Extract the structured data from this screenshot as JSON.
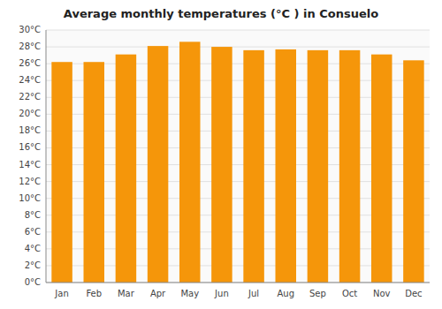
{
  "chart_data": {
    "type": "bar",
    "title": "Average monthly temperatures (°C ) in Consuelo",
    "categories": [
      "Jan",
      "Feb",
      "Mar",
      "Apr",
      "May",
      "Jun",
      "Jul",
      "Aug",
      "Sep",
      "Oct",
      "Nov",
      "Dec"
    ],
    "values": [
      26.2,
      26.2,
      27.1,
      28.1,
      28.6,
      28.0,
      27.6,
      27.7,
      27.6,
      27.6,
      27.1,
      26.4
    ],
    "color": "#F5960A",
    "ylim": [
      0,
      30
    ],
    "yticks": [
      {
        "value": 0,
        "label": "0°C"
      },
      {
        "value": 2,
        "label": "2°C"
      },
      {
        "value": 4,
        "label": "4°C"
      },
      {
        "value": 6,
        "label": "6°C"
      },
      {
        "value": 8,
        "label": "8°C"
      },
      {
        "value": 10,
        "label": "10°C"
      },
      {
        "value": 12,
        "label": "12°C"
      },
      {
        "value": 14,
        "label": "14°C"
      },
      {
        "value": 16,
        "label": "16°C"
      },
      {
        "value": 18,
        "label": "18°C"
      },
      {
        "value": 20,
        "label": "20°C"
      },
      {
        "value": 22,
        "label": "22°C"
      },
      {
        "value": 24,
        "label": "24°C"
      },
      {
        "value": 26,
        "label": "26°C"
      },
      {
        "value": 28,
        "label": "28°C"
      },
      {
        "value": 30,
        "label": "30°C"
      }
    ],
    "grid": true
  }
}
